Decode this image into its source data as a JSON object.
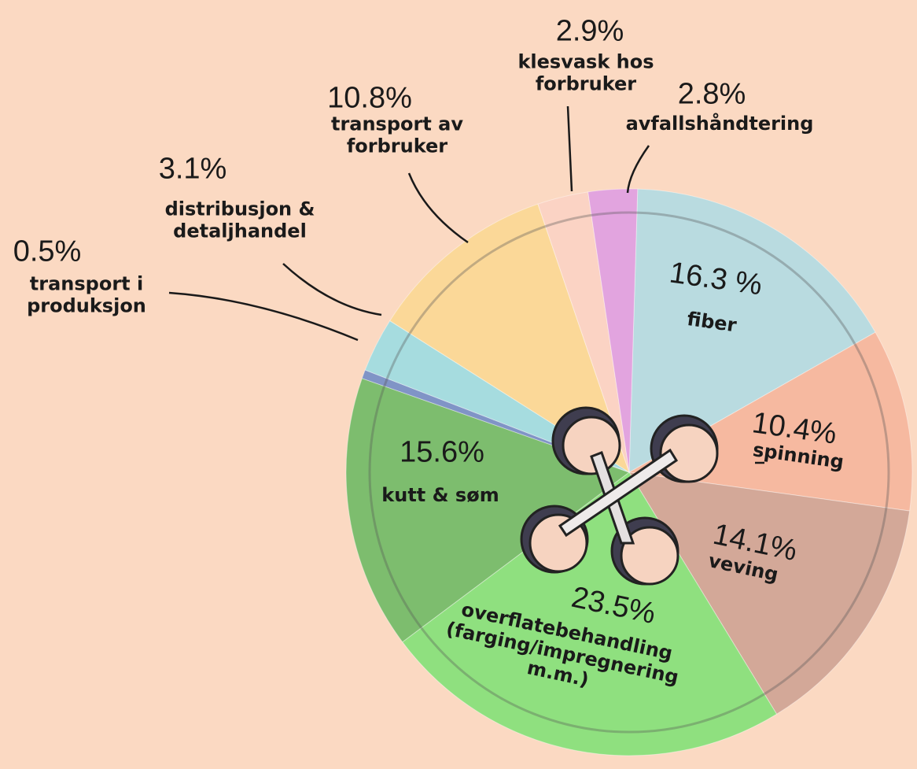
{
  "chart_data": {
    "type": "pie",
    "categories": [
      "fiber",
      "spinning",
      "veving",
      "overflatebehandling (farging/impregnering m.m.)",
      "kutt & søm",
      "transport i produksjon",
      "distribusjon & detaljhandel",
      "transport av forbruker",
      "klesvask hos forbruker",
      "avfallshåndtering"
    ],
    "values": [
      16.3,
      10.4,
      14.1,
      23.5,
      15.6,
      0.5,
      3.1,
      10.8,
      2.9,
      2.8
    ],
    "value_labels": [
      "16.3 %",
      "10.4%",
      "14.1%",
      "23.5%",
      "15.6%",
      "0.5%",
      "3.1%",
      "10.8%",
      "2.9%",
      "2.8%"
    ],
    "colors": [
      "#b9dbe0",
      "#f6b9a0",
      "#d3a898",
      "#8fe07f",
      "#7dbd6e",
      "#8094c6",
      "#a6dcdf",
      "#fbd898",
      "#fbd3c4",
      "#e2a4df"
    ]
  }
}
